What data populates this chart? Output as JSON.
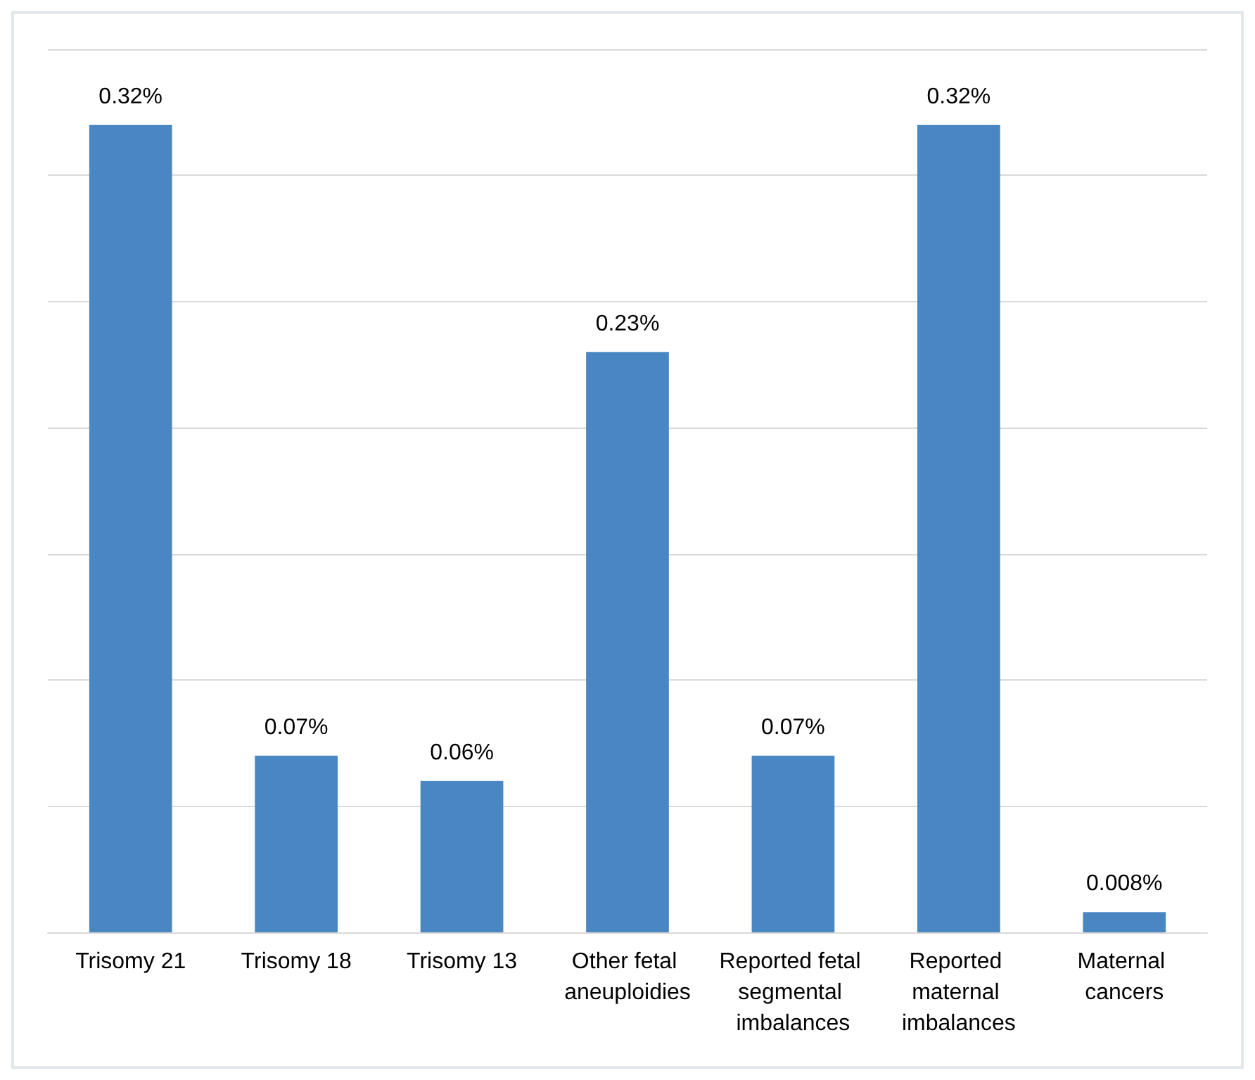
{
  "chart_data": {
    "type": "bar",
    "categories": [
      "Trisomy 21",
      "Trisomy 18",
      "Trisomy 13",
      "Other fetal aneuploidies",
      "Reported fetal segmental imbalances",
      "Reported maternal imbalances",
      "Maternal cancers"
    ],
    "values": [
      0.32,
      0.07,
      0.06,
      0.23,
      0.07,
      0.32,
      0.008
    ],
    "value_labels": [
      "0.32%",
      "0.07%",
      "0.06%",
      "0.23%",
      "0.07%",
      "0.32%",
      "0.008%"
    ],
    "color": "#4a87c2",
    "ylim": [
      0,
      0.35
    ],
    "yticks": [
      {
        "value": 0,
        "label": null
      },
      {
        "value": 0.05,
        "label": null
      },
      {
        "value": 0.1,
        "label": null
      },
      {
        "value": 0.15,
        "label": null
      },
      {
        "value": 0.2,
        "label": null
      },
      {
        "value": 0.25,
        "label": null
      },
      {
        "value": 0.3,
        "label": null
      },
      {
        "value": 0.35,
        "label": null
      }
    ],
    "grid": "y",
    "tick_labels": "x"
  }
}
